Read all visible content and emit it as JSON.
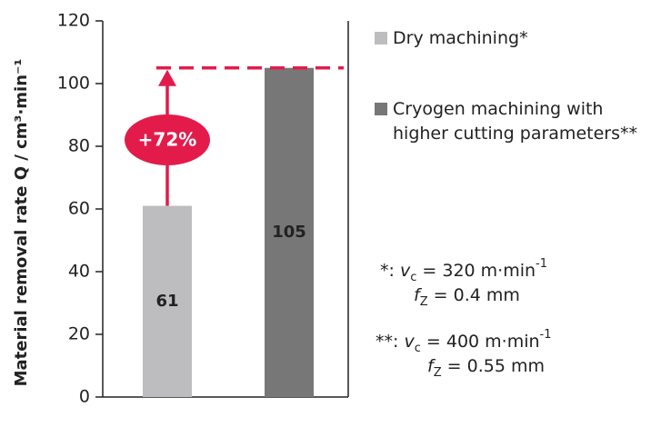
{
  "chart_data": {
    "type": "bar",
    "ylabel": "Material removal rate Q / cm³·min⁻¹",
    "categories": [
      null
    ],
    "series": [
      {
        "name": "Dry machining*",
        "color": "#bdbdbf",
        "values": [
          61
        ]
      },
      {
        "name": "Cryogen machining with higher cutting parameters**",
        "color": "#777778",
        "values": [
          105
        ]
      }
    ],
    "ylim": [
      0,
      120
    ],
    "yticks": [
      0,
      20,
      40,
      60,
      80,
      100,
      120
    ],
    "annotation": {
      "text": "+72%",
      "color": "#e31b4b"
    },
    "notes": [
      [
        {
          "text": "*: "
        },
        {
          "text": "v",
          "style": "italic"
        },
        {
          "text": "c",
          "style": "sub"
        },
        {
          "text": " = 320 m·min"
        },
        {
          "text": "-1",
          "style": "sup"
        }
      ],
      [
        {
          "text": "f",
          "style": "italic"
        },
        {
          "text": "Z",
          "style": "sub"
        },
        {
          "text": " = 0.4 mm"
        }
      ],
      [
        {
          "text": "**: "
        },
        {
          "text": "v",
          "style": "italic"
        },
        {
          "text": "c",
          "style": "sub"
        },
        {
          "text": " = 400 m·min"
        },
        {
          "text": "-1",
          "style": "sup"
        }
      ],
      [
        {
          "text": "f",
          "style": "italic"
        },
        {
          "text": "Z",
          "style": "sub"
        },
        {
          "text": " = 0.55 mm"
        }
      ]
    ]
  }
}
